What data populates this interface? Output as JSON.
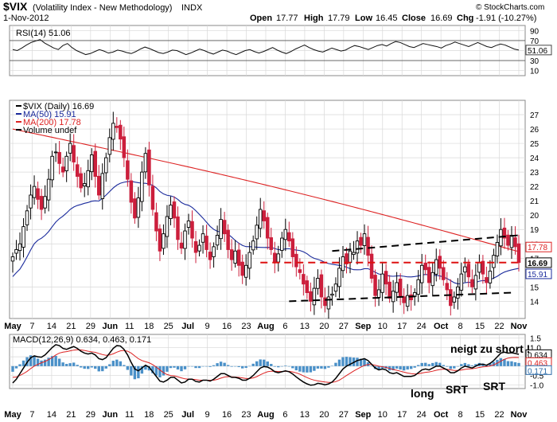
{
  "header": {
    "symbol": "$VIX",
    "name": "(Volatility Index - New Methodology)",
    "exchange": "INDX",
    "date": "1-Nov-2012",
    "open_label": "Open",
    "open": "17.77",
    "high_label": "High",
    "high": "17.79",
    "low_label": "Low",
    "low": "16.45",
    "close_label": "Close",
    "close": "16.69",
    "chg_label": "Chg",
    "chg": "-1.91 (-10.27%)",
    "watermark": "© StockCharts.com"
  },
  "colors": {
    "up": "#000000",
    "down": "#cc1f3c",
    "ma50": "#1a2a9c",
    "ma200": "#dd2222",
    "macd": "#000000",
    "signal": "#dd2222",
    "histogram": "#4a90c8",
    "grid": "#d8d8d8"
  },
  "chart_data": [
    {
      "type": "line",
      "panel": "rsi",
      "legend": "RSI(14) 51.06",
      "ylim": [
        0,
        100
      ],
      "y_ticks": [
        "90",
        "70",
        "50",
        "30",
        "10"
      ],
      "reference_lines": [
        70,
        30
      ],
      "current_label": "51.06",
      "values": [
        52,
        50,
        55,
        61,
        66,
        69,
        72,
        65,
        60,
        55,
        52,
        60,
        64,
        56,
        50,
        46,
        42,
        44,
        48,
        52,
        49,
        45,
        47,
        51,
        49,
        46,
        44,
        48,
        53,
        57,
        54,
        50,
        46,
        44,
        47,
        51,
        50,
        46,
        42,
        45,
        49,
        53,
        50,
        46,
        43,
        47,
        51,
        49,
        45,
        42,
        46,
        50,
        52,
        48,
        45,
        48,
        52,
        56,
        51,
        47,
        44,
        48,
        53,
        57,
        61,
        56,
        52,
        49,
        47,
        51,
        55,
        52,
        49,
        51,
        56,
        60,
        58,
        55,
        52,
        56,
        60,
        62,
        59,
        64,
        68,
        66,
        62,
        58,
        56,
        60,
        64,
        62,
        60,
        58,
        55,
        60,
        63,
        67,
        64,
        61,
        58,
        62,
        66,
        62,
        58,
        56,
        60,
        63,
        61,
        57,
        53,
        51
      ]
    },
    {
      "type": "candlestick",
      "panel": "price",
      "legend": [
        "$VIX (Daily) 16.69",
        "MA(50) 15.91",
        "MA(200) 17.78",
        "Volume undef"
      ],
      "ylim": [
        12.8,
        28
      ],
      "y_ticks": [
        "27",
        "26",
        "25",
        "24",
        "23",
        "22",
        "21",
        "20",
        "19",
        "18",
        "17",
        "15",
        "14"
      ],
      "current_labels": {
        "ma200": "17.78",
        "close": "16.69",
        "ma50": "15.91"
      },
      "x_labels": [
        "May",
        "7",
        "14",
        "21",
        "29",
        "Jun",
        "11",
        "18",
        "25",
        "Jul",
        "9",
        "16",
        "23",
        "Aug",
        "6",
        "13",
        "20",
        "27",
        "Sep",
        "10",
        "17",
        "24",
        "Oct",
        "8",
        "15",
        "22",
        "Nov"
      ],
      "close": [
        17.1,
        17.6,
        18.0,
        19.2,
        20.3,
        21.4,
        22.0,
        21.1,
        20.4,
        21.3,
        22.5,
        24.1,
        24.4,
        23.6,
        23.0,
        24.1,
        25.0,
        23.7,
        22.7,
        21.9,
        22.2,
        23.1,
        24.2,
        22.7,
        21.4,
        22.9,
        24.0,
        25.4,
        26.4,
        26.1,
        25.3,
        24.0,
        22.5,
        20.9,
        19.8,
        21.2,
        23.0,
        24.3,
        22.1,
        20.4,
        18.9,
        17.5,
        18.7,
        19.9,
        20.7,
        19.8,
        18.3,
        17.7,
        18.9,
        19.6,
        18.4,
        17.4,
        17.9,
        18.7,
        17.6,
        16.9,
        17.8,
        18.6,
        19.7,
        18.7,
        17.6,
        16.9,
        17.5,
        16.5,
        15.8,
        16.5,
        17.4,
        18.2,
        19.3,
        20.4,
        19.6,
        18.4,
        17.6,
        16.7,
        17.3,
        18.4,
        19.0,
        18.2,
        17.1,
        16.4,
        16.0,
        15.2,
        14.6,
        14.0,
        14.9,
        15.6,
        14.3,
        13.7,
        14.3,
        14.5,
        15.2,
        16.3,
        17.1,
        16.6,
        17.5,
        17.4,
        18.2,
        17.9,
        18.7,
        17.2,
        15.6,
        14.4,
        14.8,
        15.9,
        15.2,
        14.2,
        14.7,
        15.3,
        14.3,
        13.9,
        14.4,
        14.1,
        14.6,
        15.5,
        16.5,
        16.2,
        15.3,
        16.0,
        16.9,
        16.3,
        15.5,
        14.8,
        13.7,
        14.3,
        15.0,
        15.9,
        16.4,
        15.7,
        15.0,
        15.8,
        16.7,
        15.9,
        15.3,
        16.1,
        17.2,
        18.1,
        19.0,
        18.4,
        17.9,
        18.6,
        17.8,
        16.7
      ]
    },
    {
      "type": "line",
      "panel": "macd",
      "legend": "MACD(12,26,9) 0.634, 0.463, 0.171",
      "ylim": [
        -1.2,
        1.7
      ],
      "y_ticks": [
        "1.5",
        "1.0",
        "0.5",
        "0.0",
        "-0.5",
        "-1.0"
      ],
      "current_labels": [
        "0.634",
        "0.463",
        "0.171"
      ],
      "series": [
        {
          "name": "MACD",
          "values": [
            -0.9,
            -0.7,
            -0.4,
            -0.1,
            0.2,
            0.45,
            0.55,
            0.5,
            0.48,
            0.6,
            0.8,
            1.0,
            1.15,
            1.1,
            0.95,
            0.9,
            0.98,
            1.05,
            0.95,
            0.8,
            0.7,
            0.65,
            0.7,
            0.6,
            0.4,
            0.35,
            0.45,
            0.7,
            0.95,
            1.1,
            1.08,
            0.9,
            0.6,
            0.2,
            -0.15,
            -0.25,
            -0.1,
            0.05,
            -0.05,
            -0.3,
            -0.55,
            -0.8,
            -0.85,
            -0.75,
            -0.6,
            -0.6,
            -0.75,
            -0.9,
            -0.85,
            -0.7,
            -0.7,
            -0.82,
            -0.85,
            -0.75,
            -0.75,
            -0.8,
            -0.7,
            -0.55,
            -0.4,
            -0.4,
            -0.5,
            -0.6,
            -0.6,
            -0.65,
            -0.75,
            -0.75,
            -0.65,
            -0.5,
            -0.3,
            -0.1,
            -0.02,
            -0.05,
            -0.15,
            -0.3,
            -0.35,
            -0.3,
            -0.25,
            -0.3,
            -0.42,
            -0.58,
            -0.72,
            -0.85,
            -0.95,
            -1.02,
            -1.0,
            -0.92,
            -0.95,
            -1.0,
            -0.95,
            -0.85,
            -0.65,
            -0.4,
            -0.15,
            0.0,
            0.1,
            0.2,
            0.3,
            0.35,
            0.4,
            0.3,
            0.1,
            -0.1,
            -0.2,
            -0.15,
            -0.2,
            -0.35,
            -0.4,
            -0.35,
            -0.45,
            -0.55,
            -0.55,
            -0.55,
            -0.5,
            -0.35,
            -0.2,
            -0.15,
            -0.2,
            -0.1,
            0.0,
            0.0,
            -0.1,
            -0.2,
            -0.35,
            -0.35,
            -0.25,
            -0.1,
            0.0,
            -0.05,
            -0.1,
            0.0,
            0.1,
            0.1,
            0.05,
            0.15,
            0.3,
            0.5,
            0.7,
            0.75,
            0.7,
            0.72,
            0.68,
            0.634
          ]
        },
        {
          "name": "Signal",
          "values": [
            -0.6,
            -0.58,
            -0.5,
            -0.4,
            -0.28,
            -0.13,
            0.0,
            0.1,
            0.18,
            0.25,
            0.35,
            0.46,
            0.6,
            0.7,
            0.75,
            0.78,
            0.82,
            0.86,
            0.88,
            0.87,
            0.84,
            0.8,
            0.77,
            0.74,
            0.68,
            0.62,
            0.58,
            0.6,
            0.66,
            0.75,
            0.82,
            0.84,
            0.8,
            0.7,
            0.55,
            0.4,
            0.3,
            0.24,
            0.18,
            0.08,
            -0.05,
            -0.2,
            -0.35,
            -0.45,
            -0.5,
            -0.52,
            -0.57,
            -0.63,
            -0.68,
            -0.7,
            -0.7,
            -0.72,
            -0.75,
            -0.75,
            -0.75,
            -0.76,
            -0.75,
            -0.71,
            -0.64,
            -0.58,
            -0.56,
            -0.57,
            -0.58,
            -0.6,
            -0.63,
            -0.66,
            -0.66,
            -0.63,
            -0.56,
            -0.46,
            -0.37,
            -0.3,
            -0.27,
            -0.27,
            -0.29,
            -0.29,
            -0.28,
            -0.28,
            -0.31,
            -0.36,
            -0.43,
            -0.52,
            -0.61,
            -0.69,
            -0.75,
            -0.79,
            -0.82,
            -0.85,
            -0.87,
            -0.87,
            -0.83,
            -0.75,
            -0.63,
            -0.5,
            -0.38,
            -0.26,
            -0.15,
            -0.05,
            0.04,
            0.09,
            0.09,
            0.05,
            0.0,
            -0.03,
            -0.07,
            -0.12,
            -0.18,
            -0.22,
            -0.27,
            -0.32,
            -0.37,
            -0.4,
            -0.42,
            -0.41,
            -0.37,
            -0.33,
            -0.31,
            -0.27,
            -0.22,
            -0.18,
            -0.16,
            -0.17,
            -0.2,
            -0.23,
            -0.23,
            -0.21,
            -0.17,
            -0.15,
            -0.14,
            -0.11,
            -0.07,
            -0.04,
            -0.02,
            0.01,
            0.07,
            0.16,
            0.27,
            0.37,
            0.43,
            0.46,
            0.47,
            0.463
          ]
        }
      ],
      "annotations": [
        "neigt zu short !",
        "long",
        "SRT",
        "SRT"
      ]
    }
  ]
}
